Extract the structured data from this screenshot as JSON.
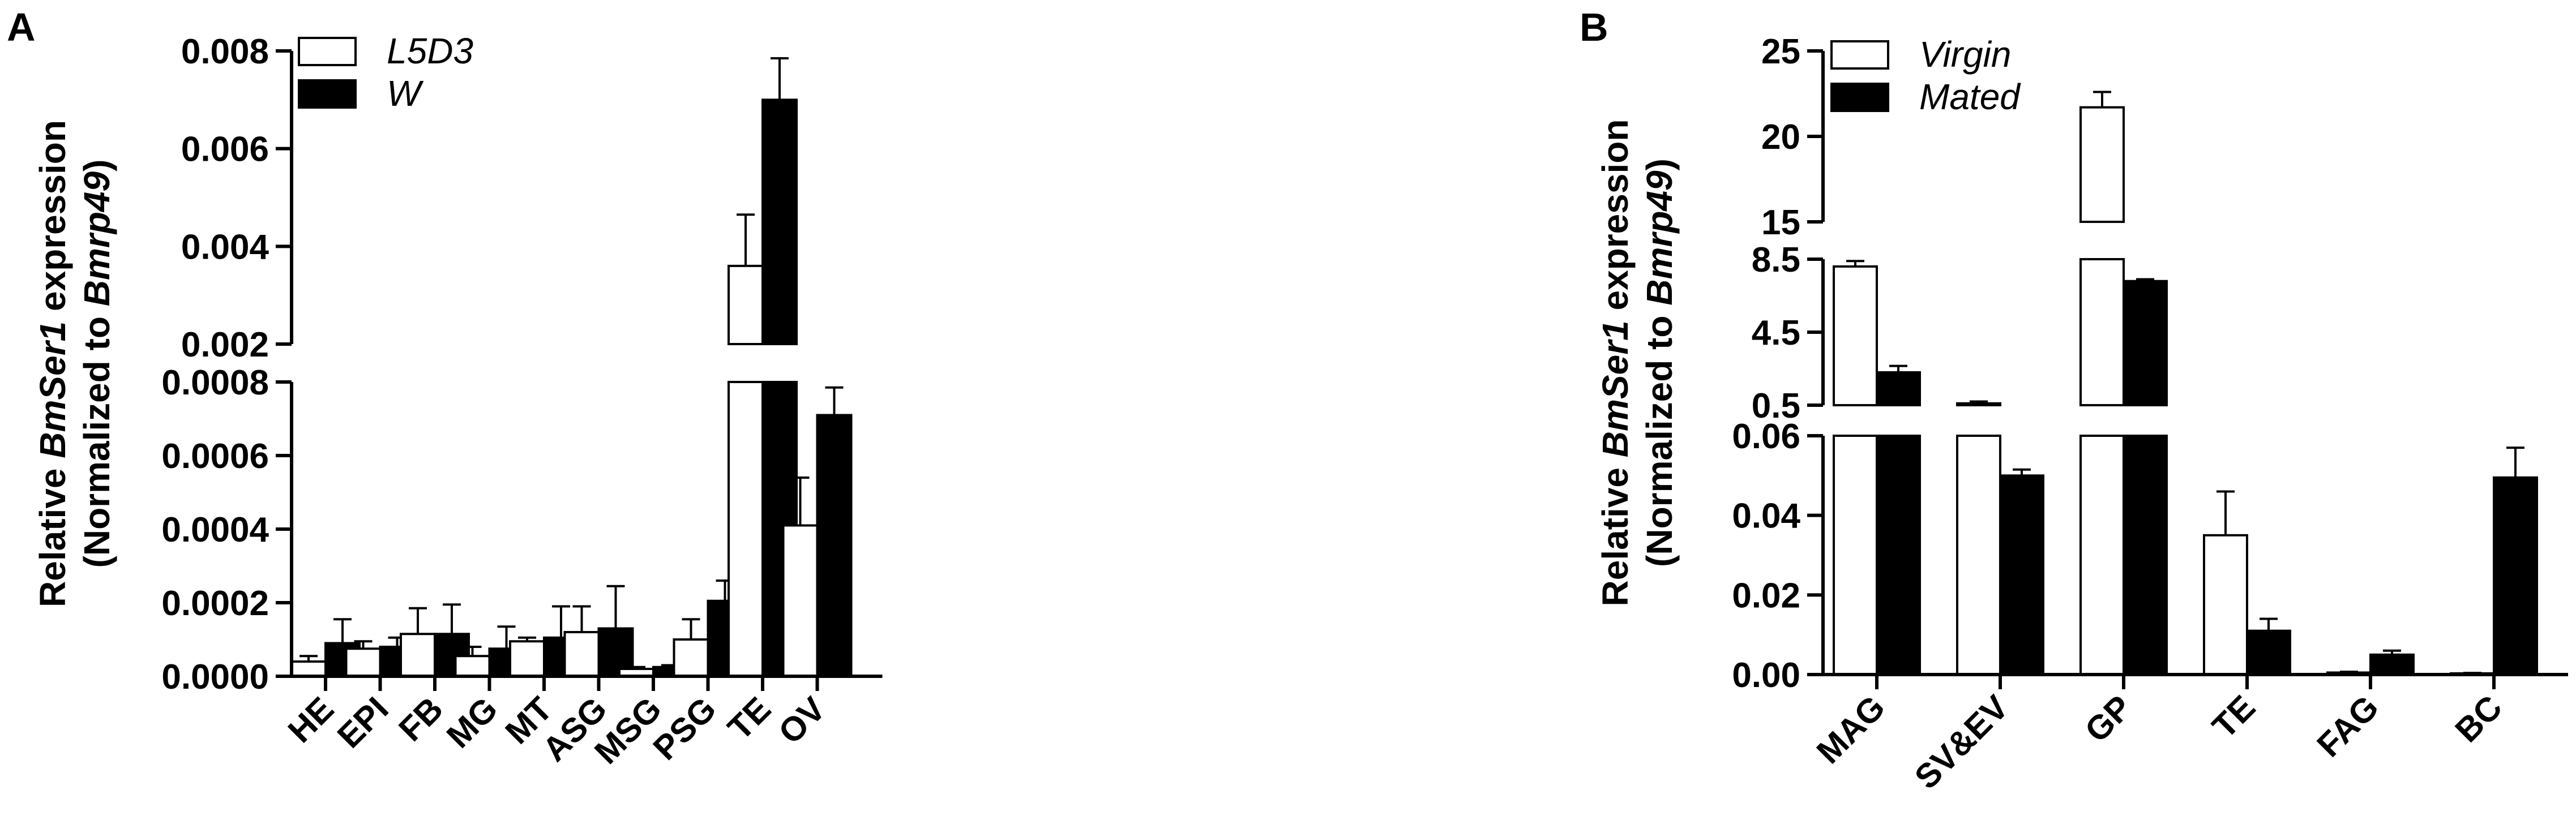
{
  "chart_data": [
    {
      "type": "bar",
      "panel_label": "A",
      "ylabel_line1": [
        "Relative ",
        "BmSer1",
        " expression"
      ],
      "ylabel_line2": [
        "(Normalized to ",
        "Bmrp49",
        ")"
      ],
      "categories": [
        "HE",
        "EPI",
        "FB",
        "MG",
        "MT",
        "ASG",
        "MSG",
        "PSG",
        "TE",
        "OV"
      ],
      "series": [
        {
          "name": "L5D3",
          "color": "#ffffff",
          "values": [
            4e-05,
            7.5e-05,
            0.000115,
            5.5e-05,
            9.5e-05,
            0.00012,
            2e-05,
            0.0001,
            0.0036,
            0.00041
          ],
          "errors": [
            1.5e-05,
            2e-05,
            7e-05,
            2.5e-05,
            1e-05,
            7e-05,
            5e-06,
            5.5e-05,
            0.00105,
            0.00013
          ]
        },
        {
          "name": "W",
          "color": "#000000",
          "values": [
            9e-05,
            8e-05,
            0.000115,
            7.5e-05,
            0.000105,
            0.00013,
            2.5e-05,
            0.000205,
            0.007,
            0.00071
          ],
          "errors": [
            6.5e-05,
            2.5e-05,
            8e-05,
            6e-05,
            8.5e-05,
            0.000115,
            5e-06,
            5.5e-05,
            0.00085,
            7.5e-05
          ]
        }
      ],
      "y_segments": [
        {
          "range": [
            0,
            0.0008
          ],
          "ticks": [
            "0.0000",
            "0.0002",
            "0.0004",
            "0.0006",
            "0.0008"
          ]
        },
        {
          "range": [
            0.002,
            0.008
          ],
          "ticks": [
            "0.002",
            "0.004",
            "0.006",
            "0.008"
          ]
        }
      ],
      "legend_position": "top-left"
    },
    {
      "type": "bar",
      "panel_label": "B",
      "ylabel_line1": [
        "Relative ",
        "BmSer1",
        " expression"
      ],
      "ylabel_line2": [
        "(Normalized to ",
        "Bmrp49",
        ")"
      ],
      "categories": [
        "MAG",
        "SV&EV",
        "GP",
        "TE",
        "FAG",
        "BC"
      ],
      "series": [
        {
          "name": "Virgin",
          "color": "#ffffff",
          "values": [
            8.1,
            0.6,
            21.7,
            0.035,
            0.0005,
            0.0003
          ],
          "errors": [
            0.3,
            0.1,
            0.9,
            0.011,
            0.0002,
            0.0001
          ]
        },
        {
          "name": "Mated",
          "color": "#000000",
          "values": [
            2.3,
            0.05,
            7.3,
            0.011,
            0.005,
            0.0495
          ],
          "errors": [
            0.35,
            0.0015,
            0.1,
            0.003,
            0.001,
            0.0075
          ]
        }
      ],
      "y_segments": [
        {
          "range": [
            0,
            0.06
          ],
          "ticks": [
            "0.00",
            "0.02",
            "0.04",
            "0.06"
          ]
        },
        {
          "range": [
            0.5,
            8.5
          ],
          "ticks": [
            "0.5",
            "4.5",
            "8.5"
          ]
        },
        {
          "range": [
            15,
            25
          ],
          "ticks": [
            "15",
            "20",
            "25"
          ]
        }
      ],
      "legend_position": "top-left"
    }
  ]
}
